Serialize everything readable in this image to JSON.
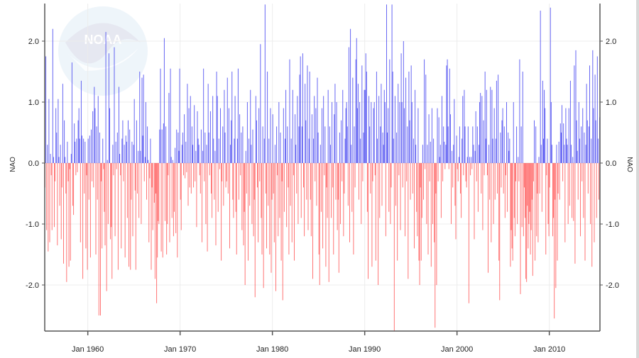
{
  "chart_data": {
    "type": "bar",
    "title": "",
    "xlabel": "",
    "ylabel": "NAO",
    "ylabel_right": "NAO",
    "frequency": "monthly",
    "xlim": [
      "May 1955",
      "Jun 2015"
    ],
    "ylim": [
      -2.76,
      2.62
    ],
    "grid": true,
    "legend": "none",
    "x_ticks": [
      {
        "year": 1960,
        "label": "Jan 1960"
      },
      {
        "year": 1970,
        "label": "Jan 1970"
      },
      {
        "year": 1980,
        "label": "Jan 1980"
      },
      {
        "year": 1990,
        "label": "Jan 1990"
      },
      {
        "year": 2000,
        "label": "Jan 2000"
      },
      {
        "year": 2010,
        "label": "Jan 2010"
      }
    ],
    "y_ticks": [
      {
        "value": 2,
        "label": "2.0"
      },
      {
        "value": 1,
        "label": "1.0"
      },
      {
        "value": 0,
        "label": "0.0"
      },
      {
        "value": -1,
        "label": "-1.0"
      },
      {
        "value": -2,
        "label": "-2.0"
      }
    ],
    "colors": {
      "positive": "#3b3bef",
      "negative": "#ff3b3b",
      "grid": "#ececec",
      "axis": "#555555"
    },
    "values_by_year": {
      "1955": [
        null,
        null,
        null,
        null,
        -0.4,
        1.75,
        -1.1,
        0.3,
        -1.45,
        1.05,
        -1.3,
        0.15
      ],
      "1956": [
        -0.2,
        -1.1,
        2.2,
        0.1,
        -1.05,
        -0.3,
        0.9,
        0.5,
        -1.35,
        1.05,
        0.1,
        -0.7
      ],
      "1957": [
        0.3,
        -1.25,
        -0.4,
        1.3,
        -1.65,
        0.7,
        0.1,
        -0.5,
        -1.95,
        0.35,
        -0.3,
        -1.7
      ],
      "1958": [
        -0.1,
        -1.6,
        0.15,
        1.65,
        -0.7,
        -0.85,
        0.65,
        0.35,
        -0.2,
        0.4,
        -0.15,
        0.7
      ],
      "1959": [
        0.9,
        0.4,
        -1.3,
        1.35,
        0.45,
        -1.9,
        0.4,
        -0.5,
        0.35,
        -1.4,
        -0.2,
        -1.75
      ],
      "1960": [
        0.4,
        -0.6,
        0.45,
        -1.55,
        0.55,
        -0.3,
        0.85,
        -0.4,
        1.25,
        0.9,
        -1.5,
        0.6
      ],
      "1961": [
        -0.6,
        1.1,
        -2.5,
        0.5,
        -2.5,
        -0.3,
        -1.4,
        0.4,
        -0.1,
        -0.8,
        -1.35,
        2.15
      ],
      "1962": [
        -2.1,
        0.05,
        -1.0,
        1.8,
        0.9,
        -1.25,
        -1.05,
        -1.9,
        0.3,
        -0.2,
        1.9,
        -1.2
      ],
      "1963": [
        0.35,
        -0.1,
        0.5,
        -1.75,
        1.25,
        0.15,
        -0.2,
        -1.4,
        0.4,
        0.7,
        -0.3,
        0.3
      ],
      "1964": [
        -1.55,
        0.45,
        0.35,
        -0.9,
        0.7,
        -1.7,
        0.55,
        -1.75,
        -0.6,
        0.35,
        -1.2,
        0.3
      ],
      "1965": [
        1.05,
        -0.45,
        -1.75,
        0.7,
        -0.5,
        0.2,
        -0.9,
        1.5,
        0.2,
        -1.0,
        1.4,
        0.45
      ],
      "1966": [
        1.45,
        -0.3,
        0.1,
        1.0,
        -0.6,
        0.6,
        0.05,
        -1.3,
        -0.25,
        0.4,
        -1.75,
        -0.4
      ],
      "1967": [
        -1.1,
        0.0,
        -0.65,
        -1.9,
        -0.5,
        -2.3,
        -1.55,
        -0.95,
        -1.0,
        0.55,
        1.55,
        -1.45
      ],
      "1968": [
        0.55,
        -1.55,
        0.65,
        2.05,
        -0.95,
        0.6,
        -1.5,
        -1.0,
        -0.2,
        1.15,
        -1.3,
        1.55
      ],
      "1969": [
        0.1,
        -0.9,
        0.05,
        -1.2,
        -0.8,
        0.25,
        -1.15,
        0.55,
        -1.55,
        0.5,
        0.2,
        1.55
      ],
      "1970": [
        -0.6,
        -1.1,
        0.3,
        0.5,
        -0.2,
        0.8,
        -0.25,
        0.35,
        -0.15,
        1.3,
        -0.7,
        0.9
      ],
      "1971": [
        -0.4,
        1.1,
        -0.5,
        0.6,
        0.3,
        -0.4,
        0.95,
        -0.3,
        0.2,
        -1.05,
        0.85,
        0.4
      ],
      "1972": [
        0.3,
        -0.2,
        -0.5,
        0.55,
        -1.3,
        0.2,
        1.55,
        -0.3,
        0.5,
        -1.0,
        0.3,
        -1.45
      ],
      "1973": [
        1.3,
        0.5,
        -0.2,
        0.85,
        -0.5,
        -0.9,
        1.1,
        0.4,
        -0.6,
        0.2,
        -1.35,
        1.5
      ],
      "1974": [
        1.1,
        -0.8,
        0.4,
        -0.1,
        0.9,
        -1.6,
        -0.3,
        0.6,
        -0.7,
        1.2,
        0.5,
        -0.4
      ],
      "1975": [
        -0.3,
        1.4,
        -0.5,
        0.9,
        -1.4,
        0.3,
        0.7,
        1.5,
        -0.6,
        -0.9,
        0.4,
        1.1
      ],
      "1976": [
        -0.8,
        -1.5,
        0.4,
        1.55,
        -0.6,
        0.8,
        -0.2,
        0.5,
        -1.1,
        0.6,
        -1.35,
        -0.8
      ],
      "1977": [
        -2.0,
        0.2,
        -0.5,
        1.0,
        -1.6,
        0.4,
        -0.7,
        1.2,
        0.3,
        -1.0,
        0.55,
        -1.2
      ],
      "1978": [
        -0.6,
        -2.2,
        1.1,
        0.7,
        -0.4,
        -1.3,
        0.9,
        -0.3,
        1.95,
        -0.9,
        -1.5,
        0.6
      ],
      "1979": [
        -2.05,
        0.4,
        2.6,
        -0.5,
        -1.4,
        1.5,
        -0.7,
        0.4,
        -1.5,
        0.9,
        -1.8,
        -0.6
      ],
      "1980": [
        0.8,
        -0.5,
        -1.3,
        0.3,
        -2.1,
        0.6,
        -0.2,
        -1.2,
        1.0,
        -0.9,
        0.5,
        -1.6
      ],
      "1981": [
        -0.3,
        -2.25,
        0.9,
        -0.8,
        0.4,
        1.2,
        -1.05,
        0.6,
        -0.4,
        -1.5,
        1.7,
        -0.7
      ],
      "1982": [
        0.4,
        -1.3,
        1.2,
        -0.2,
        -1.6,
        0.8,
        0.3,
        -0.5,
        1.1,
        -1.0,
        0.6,
        1.45
      ],
      "1983": [
        1.75,
        -0.9,
        0.6,
        1.8,
        -0.4,
        -1.2,
        1.3,
        0.7,
        -0.6,
        1.6,
        -1.1,
        0.4
      ],
      "1984": [
        1.5,
        -0.6,
        -1.2,
        0.8,
        -1.9,
        0.4,
        1.1,
        -0.3,
        0.9,
        -0.7,
        1.4,
        0.5
      ],
      "1985": [
        -1.5,
        -2.0,
        0.3,
        -0.8,
        0.9,
        -1.4,
        1.1,
        -0.2,
        0.6,
        -1.7,
        -0.4,
        -0.9
      ],
      "1986": [
        1.2,
        -1.95,
        0.6,
        0.3,
        -0.9,
        1.0,
        -0.4,
        -1.5,
        0.8,
        1.3,
        -0.6,
        1.0
      ],
      "1987": [
        -1.1,
        -0.6,
        -1.8,
        0.5,
        -1.0,
        0.7,
        -0.3,
        1.2,
        -1.2,
        -0.5,
        0.4,
        0.9
      ],
      "1988": [
        1.0,
        0.6,
        -0.7,
        1.9,
        -1.3,
        2.2,
        0.3,
        -0.8,
        1.4,
        -1.5,
        0.6,
        -0.4
      ],
      "1989": [
        1.7,
        2.05,
        0.9,
        1.3,
        -0.6,
        1.0,
        0.4,
        -1.0,
        1.6,
        -0.3,
        0.5,
        1.2
      ],
      "1990": [
        1.2,
        1.8,
        1.5,
        -0.8,
        -1.9,
        1.1,
        0.6,
        -0.5,
        1.0,
        -1.7,
        -0.3,
        0.9
      ],
      "1991": [
        1.0,
        -0.2,
        -1.6,
        1.5,
        0.4,
        -2.0,
        1.1,
        -0.9,
        0.6,
        1.3,
        -0.7,
        0.5
      ],
      "1992": [
        0.3,
        1.2,
        1.0,
        -1.2,
        2.6,
        0.5,
        0.9,
        -0.8,
        1.7,
        -1.0,
        -0.4,
        2.6
      ],
      "1993": [
        1.5,
        0.4,
        -2.75,
        1.1,
        -0.7,
        0.5,
        -1.6,
        1.3,
        -0.2,
        1.0,
        -1.1,
        1.8
      ],
      "1994": [
        1.0,
        -0.4,
        2.0,
        0.9,
        -1.2,
        1.4,
        -0.3,
        0.6,
        -1.9,
        1.5,
        0.7,
        -0.6
      ],
      "1995": [
        1.6,
        1.0,
        -0.5,
        0.4,
        -1.4,
        1.2,
        0.3,
        -0.8,
        -1.2,
        0.9,
        -1.6,
        -2.0
      ],
      "1996": [
        -0.4,
        -1.6,
        -0.9,
        0.3,
        -0.6,
        1.7,
        -0.1,
        1.45,
        -1.0,
        0.3,
        -1.5,
        0.8
      ],
      "1997": [
        -0.3,
        0.35,
        -1.7,
        0.9,
        -1.0,
        0.4,
        -1.3,
        -2.7,
        -0.5,
        -2.0,
        0.9,
        -0.3
      ],
      "1998": [
        0.75,
        0.1,
        0.3,
        -0.9,
        1.1,
        -0.3,
        0.6,
        0.35,
        -0.1,
        0.3,
        1.6,
        1.7
      ],
      "1999": [
        0.6,
        -0.1,
        1.55,
        0.8,
        -1.0,
        0.2,
        -0.4,
        0.3,
        1.05,
        -0.7,
        -1.25,
        0.45
      ],
      "2000": [
        -0.1,
        -0.3,
        0.1,
        0.6,
        -0.5,
        -0.9,
        0.4,
        1.1,
        -0.2,
        1.2,
        0.6,
        -0.3
      ],
      "2001": [
        -0.4,
        0.1,
        0.6,
        -2.3,
        0.1,
        -0.2,
        0.1,
        -0.1,
        0.6,
        0.3,
        -1.25,
        0.2
      ],
      "2002": [
        0.85,
        -0.3,
        0.6,
        -0.8,
        0.3,
        1.0,
        1.15,
        -0.5,
        1.1,
        -1.1,
        0.7,
        -0.2
      ],
      "2003": [
        1.5,
        0.4,
        1.2,
        -0.2,
        -1.8,
        0.3,
        -0.6,
        1.25,
        -1.3,
        1.2,
        0.4,
        -1.0
      ],
      "2004": [
        0.9,
        -0.6,
        0.4,
        1.35,
        -0.5,
        1.45,
        -1.6,
        -2.25,
        0.5,
        -0.4,
        0.7,
        0.9
      ],
      "2005": [
        -0.5,
        0.6,
        -0.9,
        -0.2,
        1.0,
        -0.8,
        0.5,
        0.2,
        0.4,
        -1.7,
        -1.1,
        -1.4
      ],
      "2006": [
        -1.6,
        1.0,
        -0.9,
        -1.2,
        -0.3,
        0.6,
        -1.0,
        0.1,
        -0.3,
        1.7,
        -2.15,
        0.6
      ],
      "2007": [
        -1.05,
        1.5,
        -1.2,
        -0.4,
        -0.9,
        -1.9,
        -1.95,
        -0.7,
        -1.4,
        -1.0,
        -0.8,
        -1.5
      ],
      "2008": [
        -1.1,
        -0.6,
        -1.85,
        -0.3,
        0.7,
        -1.6,
        0.6,
        -1.2,
        -0.5,
        -1.3,
        0.1,
        -0.5
      ],
      "2009": [
        2.5,
        0.3,
        -0.8,
        1.35,
        0.4,
        1.2,
        0.9,
        -1.5,
        -0.2,
        0.4,
        -1.0,
        -1.2
      ],
      "2010": [
        -0.4,
        2.55,
        1.0,
        0.3,
        -1.2,
        -0.9,
        -2.55,
        -0.6,
        -2.05,
        0.3,
        -1.6,
        -0.5
      ],
      "2011": [
        0.35,
        -0.6,
        0.65,
        0.5,
        0.95,
        -0.3,
        0.65,
        0.3,
        -1.3,
        0.9,
        0.4,
        0.3
      ],
      "2012": [
        -1.0,
        0.9,
        -0.7,
        1.35,
        0.3,
        -0.9,
        0.1,
        -0.95,
        1.6,
        -1.65,
        1.85,
        0.7
      ],
      "2013": [
        0.2,
        -0.6,
        1.0,
        0.4,
        -1.2,
        0.6,
        -0.3,
        0.9,
        -0.9,
        0.5,
        -1.6,
        0.3
      ],
      "2014": [
        1.3,
        0.7,
        -0.5,
        0.6,
        1.6,
        -1.0,
        0.4,
        -1.7,
        1.85,
        0.9,
        -1.3,
        1.45
      ],
      "2015": [
        0.7,
        -0.9,
        1.75,
        0.4,
        -0.6,
        0.75,
        null,
        null,
        null,
        null,
        null,
        null
      ]
    }
  },
  "watermark": {
    "logo_text": "NOAA"
  }
}
